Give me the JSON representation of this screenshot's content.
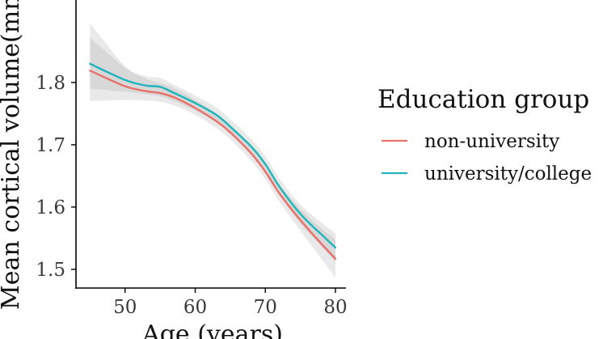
{
  "chart_data": {
    "type": "line",
    "xlabel": "Age (years)",
    "ylabel": "Mean cortical volume(mm",
    "xlim": [
      43,
      81.5
    ],
    "ylim": [
      1.47,
      1.935
    ],
    "x_ticks": [
      50,
      60,
      70,
      80
    ],
    "y_ticks": [
      1.5,
      1.6,
      1.7,
      1.8
    ],
    "x_tick_labels": [
      "50",
      "60",
      "70",
      "80"
    ],
    "y_tick_labels": [
      "1.5",
      "1.6",
      "1.7",
      "1.8"
    ],
    "grid": false,
    "legend_position": "right",
    "legend_title": "Education group",
    "colors": {
      "non_university": "#E8716A",
      "university_college": "#1FB5BA",
      "ribbon": "#999999"
    },
    "series": [
      {
        "name": "non-university",
        "color": "#E8716A",
        "x": [
          45,
          50,
          53,
          55,
          57,
          60,
          63,
          65,
          68,
          70,
          72,
          75,
          78,
          80
        ],
        "y": [
          1.819,
          1.794,
          1.786,
          1.783,
          1.776,
          1.759,
          1.738,
          1.72,
          1.686,
          1.657,
          1.622,
          1.579,
          1.541,
          1.517
        ],
        "ci_low": [
          1.77,
          1.772,
          1.771,
          1.769,
          1.763,
          1.748,
          1.727,
          1.709,
          1.674,
          1.645,
          1.609,
          1.562,
          1.517,
          1.487
        ],
        "ci_high": [
          1.895,
          1.826,
          1.806,
          1.799,
          1.791,
          1.772,
          1.751,
          1.732,
          1.699,
          1.67,
          1.636,
          1.597,
          1.566,
          1.548
        ]
      },
      {
        "name": "university/college",
        "color": "#1FB5BA",
        "x": [
          45,
          50,
          53,
          55,
          57,
          60,
          63,
          65,
          68,
          70,
          72,
          75,
          78,
          80
        ],
        "y": [
          1.83,
          1.804,
          1.795,
          1.793,
          1.783,
          1.767,
          1.748,
          1.729,
          1.697,
          1.669,
          1.633,
          1.589,
          1.556,
          1.535
        ],
        "ci_low": [
          1.79,
          1.785,
          1.781,
          1.778,
          1.77,
          1.755,
          1.736,
          1.717,
          1.685,
          1.656,
          1.62,
          1.574,
          1.537,
          1.512
        ],
        "ci_high": [
          1.872,
          1.824,
          1.81,
          1.807,
          1.796,
          1.779,
          1.76,
          1.741,
          1.709,
          1.682,
          1.646,
          1.604,
          1.575,
          1.558
        ]
      }
    ]
  }
}
